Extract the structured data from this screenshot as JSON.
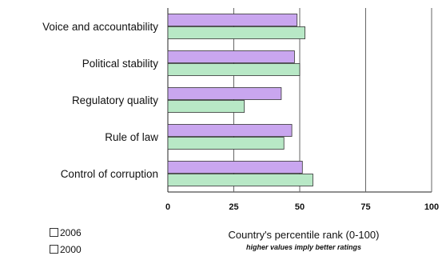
{
  "chart_data": {
    "type": "bar",
    "orientation": "horizontal",
    "categories": [
      "Voice and accountability",
      "Political stability",
      "Regulatory quality",
      "Rule of law",
      "Control of corruption"
    ],
    "series": [
      {
        "name": "2006",
        "values": [
          49,
          48,
          43,
          47,
          51
        ],
        "color": "#c9a6ef"
      },
      {
        "name": "2000",
        "values": [
          52,
          50,
          29,
          44,
          55
        ],
        "color": "#b8e8c6"
      }
    ],
    "xlim": [
      0,
      100
    ],
    "xticks": [
      0,
      25,
      50,
      75,
      100
    ],
    "xlabel": "Country's percentile rank (0-100)",
    "xlabel_note": "higher values imply better ratings",
    "grid": "vertical",
    "legend_position": "bottom-left"
  }
}
